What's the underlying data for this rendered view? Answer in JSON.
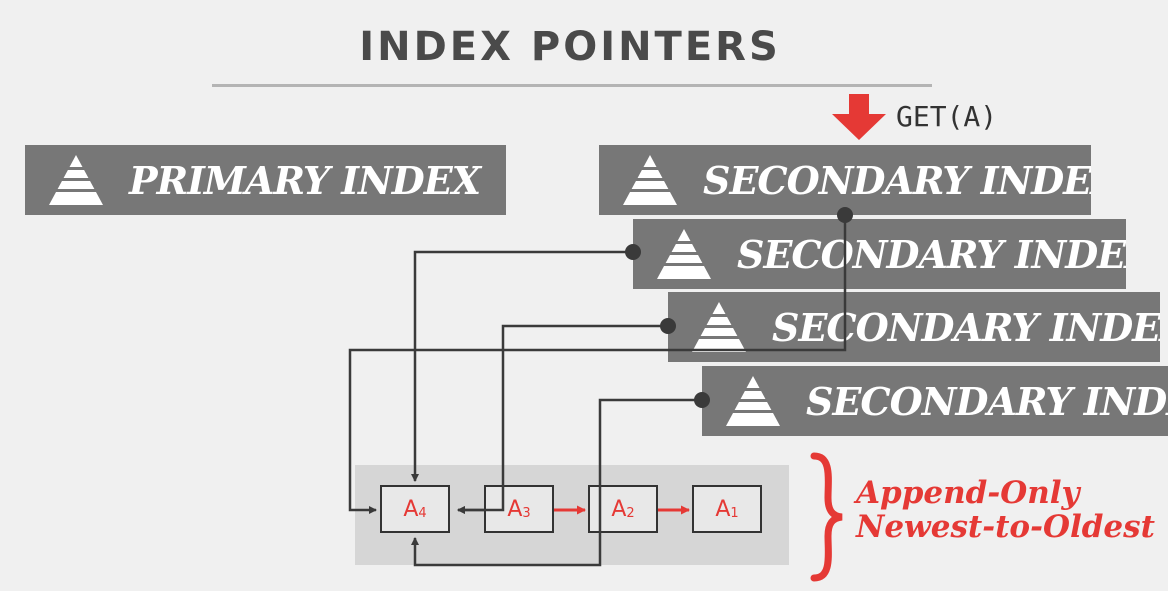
{
  "title": "INDEX POINTERS",
  "query": {
    "label": "GET(A)"
  },
  "primary_index": {
    "label": "PRIMARY INDEX"
  },
  "secondary_indexes": [
    {
      "label": "SECONDARY INDEX"
    },
    {
      "label": "SECONDARY INDEX"
    },
    {
      "label": "SECONDARY INDEX"
    },
    {
      "label": "SECONDARY INDEX"
    }
  ],
  "version_chain": [
    {
      "name": "A",
      "sub": "4"
    },
    {
      "name": "A",
      "sub": "3"
    },
    {
      "name": "A",
      "sub": "2"
    },
    {
      "name": "A",
      "sub": "1"
    }
  ],
  "annotation": {
    "line1": "Append-Only",
    "line2": "Newest-to-Oldest"
  },
  "colors": {
    "accent": "#e53935",
    "box": "#777777",
    "line": "#3a3a3a"
  }
}
